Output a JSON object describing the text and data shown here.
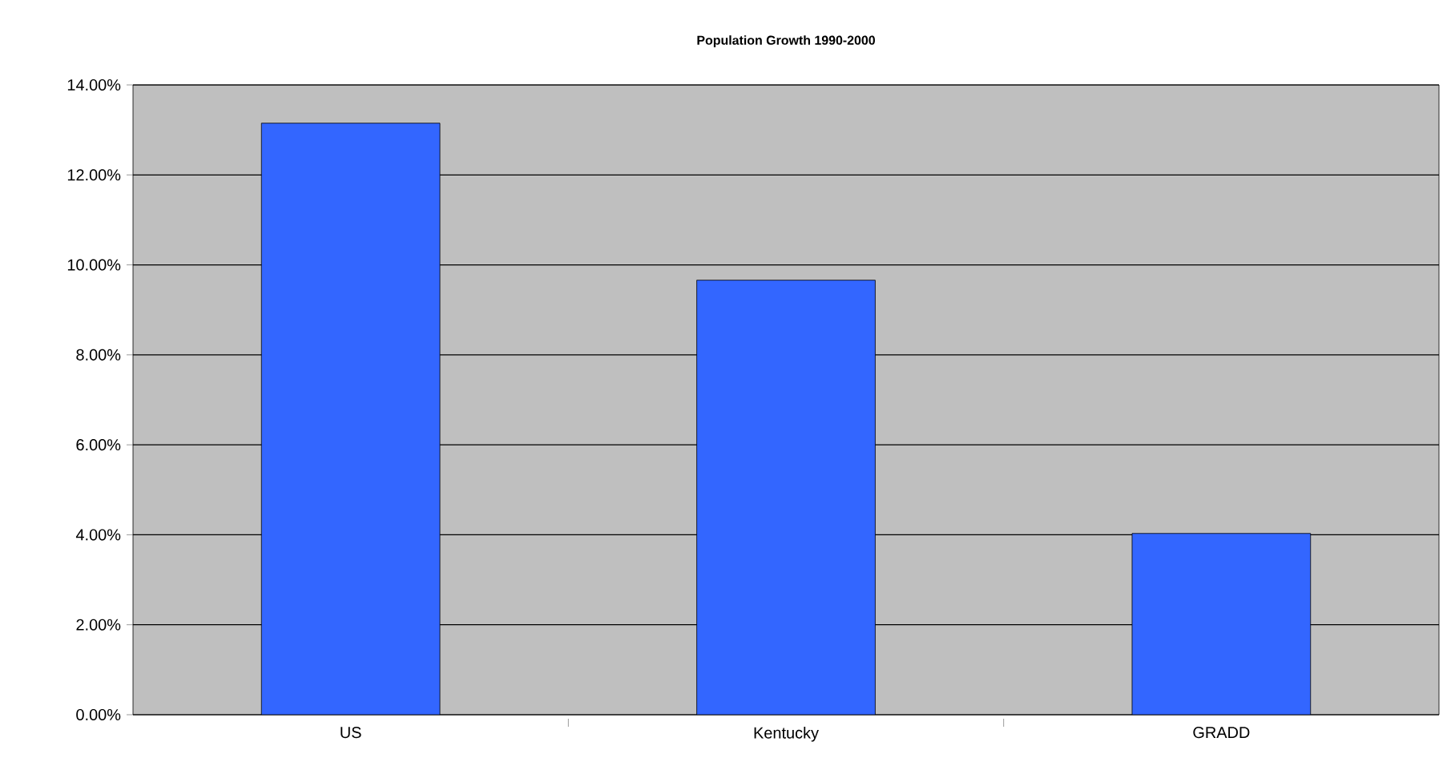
{
  "chart_data": {
    "type": "bar",
    "title": "Population Growth 1990-2000",
    "categories": [
      "US",
      "Kentucky",
      "GRADD"
    ],
    "values": [
      13.15,
      9.66,
      4.03
    ],
    "color": "#3366ff",
    "ylim": [
      0,
      14
    ],
    "yticks": [
      {
        "value": 0,
        "label": "0.00%"
      },
      {
        "value": 2,
        "label": "2.00%"
      },
      {
        "value": 4,
        "label": "4.00%"
      },
      {
        "value": 6,
        "label": "6.00%"
      },
      {
        "value": 8,
        "label": "8.00%"
      },
      {
        "value": 10,
        "label": "10.00%"
      },
      {
        "value": 12,
        "label": "12.00%"
      },
      {
        "value": 14,
        "label": "14.00%"
      }
    ],
    "grid": "y"
  }
}
